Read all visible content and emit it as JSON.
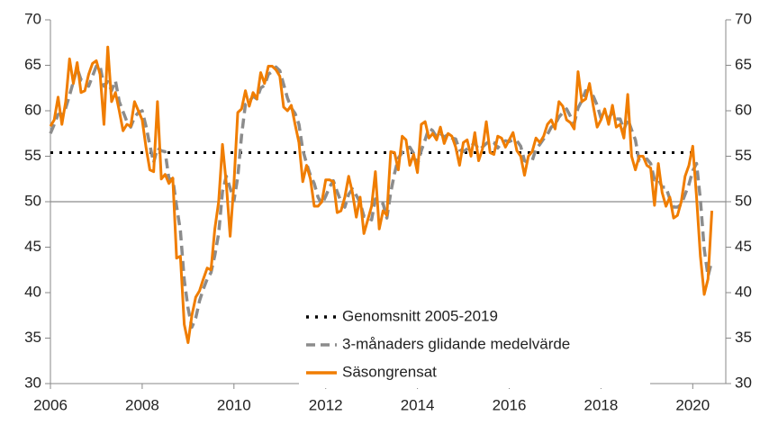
{
  "chart_data": {
    "type": "line",
    "x": [
      2006,
      2006.083,
      2006.167,
      2006.25,
      2006.333,
      2006.417,
      2006.5,
      2006.583,
      2006.667,
      2006.75,
      2006.833,
      2006.917,
      2007,
      2007.083,
      2007.167,
      2007.25,
      2007.333,
      2007.417,
      2007.5,
      2007.583,
      2007.667,
      2007.75,
      2007.833,
      2007.917,
      2008,
      2008.083,
      2008.167,
      2008.25,
      2008.333,
      2008.417,
      2008.5,
      2008.583,
      2008.667,
      2008.75,
      2008.833,
      2008.917,
      2009,
      2009.083,
      2009.167,
      2009.25,
      2009.333,
      2009.417,
      2009.5,
      2009.583,
      2009.667,
      2009.75,
      2009.833,
      2009.917,
      2010,
      2010.083,
      2010.167,
      2010.25,
      2010.333,
      2010.417,
      2010.5,
      2010.583,
      2010.667,
      2010.75,
      2010.833,
      2010.917,
      2011,
      2011.083,
      2011.167,
      2011.25,
      2011.333,
      2011.417,
      2011.5,
      2011.583,
      2011.667,
      2011.75,
      2011.833,
      2011.917,
      2012,
      2012.083,
      2012.167,
      2012.25,
      2012.333,
      2012.417,
      2012.5,
      2012.583,
      2012.667,
      2012.75,
      2012.833,
      2012.917,
      2013,
      2013.083,
      2013.167,
      2013.25,
      2013.333,
      2013.417,
      2013.5,
      2013.583,
      2013.667,
      2013.75,
      2013.833,
      2013.917,
      2014,
      2014.083,
      2014.167,
      2014.25,
      2014.333,
      2014.417,
      2014.5,
      2014.583,
      2014.667,
      2014.75,
      2014.833,
      2014.917,
      2015,
      2015.083,
      2015.167,
      2015.25,
      2015.333,
      2015.417,
      2015.5,
      2015.583,
      2015.667,
      2015.75,
      2015.833,
      2015.917,
      2016,
      2016.083,
      2016.167,
      2016.25,
      2016.333,
      2016.417,
      2016.5,
      2016.583,
      2016.667,
      2016.75,
      2016.833,
      2016.917,
      2017,
      2017.083,
      2017.167,
      2017.25,
      2017.333,
      2017.417,
      2017.5,
      2017.583,
      2017.667,
      2017.75,
      2017.833,
      2017.917,
      2018,
      2018.083,
      2018.167,
      2018.25,
      2018.333,
      2018.417,
      2018.5,
      2018.583,
      2018.667,
      2018.75,
      2018.833,
      2018.917,
      2019,
      2019.083,
      2019.167,
      2019.25,
      2019.333,
      2019.417,
      2019.5,
      2019.583,
      2019.667,
      2019.75,
      2019.833,
      2019.917,
      2020,
      2020.083,
      2020.167,
      2020.25,
      2020.333,
      2020.417
    ],
    "series": [
      {
        "name": "3-månaders glidande medelvärde",
        "color": "#8c8c8c",
        "style": "dashed",
        "values": [
          57.5,
          58.5,
          59.6,
          59.7,
          60.3,
          61.7,
          63.2,
          64.7,
          63.4,
          63.2,
          62.7,
          63.8,
          64.9,
          64.9,
          62.7,
          63.2,
          62.2,
          63.3,
          61,
          59.9,
          58.8,
          58.2,
          59.3,
          59.8,
          60,
          58.3,
          56.2,
          54.3,
          55.9,
          55.6,
          55.5,
          52.5,
          52.5,
          49.5,
          46.8,
          41.4,
          38.3,
          36.2,
          37.2,
          39.1,
          40.4,
          41.5,
          42.2,
          44.1,
          46.5,
          51.1,
          52.8,
          51.5,
          50.1,
          52.7,
          57.3,
          60.7,
          61,
          61.6,
          61.3,
          62.5,
          62.8,
          64,
          64.3,
          64.8,
          64.4,
          62.9,
          61.4,
          60.3,
          59.7,
          58.5,
          55.7,
          54.2,
          52.9,
          52,
          50.5,
          49.7,
          50.6,
          51.6,
          52.3,
          51.1,
          50,
          49.4,
          50.8,
          51.4,
          50.7,
          49.9,
          48.4,
          48.3,
          48,
          50.3,
          49.9,
          49.8,
          48.2,
          51,
          53.1,
          54.8,
          55.4,
          55.8,
          56,
          55.3,
          54.1,
          55.6,
          56.8,
          58.1,
          57.8,
          57.1,
          57.5,
          57.1,
          57.4,
          57,
          56.9,
          55.7,
          55.5,
          55.8,
          56.1,
          56.5,
          55.7,
          56,
          56.4,
          56.7,
          56.5,
          55.9,
          56.5,
          56.7,
          56.6,
          56.8,
          56.7,
          56.1,
          54.5,
          54.3,
          54.5,
          55.8,
          56.3,
          56.9,
          57.4,
          58.2,
          58.5,
          59.3,
          59.8,
          60.2,
          59.4,
          58.6,
          60.3,
          61.1,
          62.2,
          61.8,
          61.6,
          60.6,
          59.2,
          59.1,
          59.2,
          59.8,
          59.1,
          59.1,
          57.9,
          59.1,
          57.9,
          56.8,
          54.5,
          54.5,
          54.7,
          54.2,
          52.4,
          52.5,
          51.6,
          51.6,
          50.3,
          49.4,
          49.4,
          49.7,
          50.8,
          51.9,
          53.4,
          54.2,
          50.2,
          44.8,
          41.8,
          43.5
        ]
      },
      {
        "name": "Säsongrensat",
        "color": "#f07d00",
        "style": "solid",
        "values": [
          58.3,
          59,
          61.5,
          58.5,
          61,
          65.7,
          63,
          65.3,
          62,
          62.2,
          64,
          65.2,
          65.5,
          64,
          58.5,
          67,
          61,
          62,
          60,
          57.8,
          58.5,
          58.3,
          61,
          60,
          59,
          56,
          53.5,
          53.3,
          61,
          52.5,
          53,
          52,
          52.6,
          43.8,
          44,
          36.5,
          34.5,
          37.5,
          39.5,
          40.2,
          41.5,
          42.7,
          42.5,
          47,
          50,
          56.3,
          52,
          46.2,
          52,
          59.8,
          60.2,
          62.2,
          60.5,
          62,
          61.3,
          64.2,
          63,
          64.9,
          64.9,
          64.5,
          63.8,
          60.4,
          60,
          60.6,
          58.5,
          56.5,
          52.2,
          54,
          52.5,
          49.5,
          49.5,
          50,
          52.4,
          52.4,
          52.2,
          48.8,
          49,
          50.5,
          52.8,
          51,
          48.3,
          50.5,
          46.5,
          48,
          49.5,
          53.3,
          47,
          49,
          48.5,
          55.5,
          55.4,
          53.5,
          57.2,
          56.8,
          54,
          55.2,
          53.2,
          58.5,
          58.8,
          57,
          57.5,
          56.8,
          58.2,
          56.4,
          57.5,
          57.2,
          56,
          54,
          56.5,
          56.8,
          55,
          57.6,
          54.5,
          55.8,
          58.8,
          55.4,
          55.2,
          57.2,
          57,
          56,
          56.8,
          57.6,
          55.6,
          55,
          52.9,
          55,
          55.5,
          57,
          56.5,
          57.2,
          58.5,
          59,
          58,
          61,
          60.5,
          59,
          58.7,
          58,
          64.3,
          61,
          61.3,
          63,
          60.5,
          58.2,
          59,
          60.2,
          58.5,
          60.6,
          58.2,
          58.5,
          57,
          61.8,
          55,
          53.5,
          55,
          55,
          54,
          53.7,
          49.6,
          54.2,
          51,
          49.5,
          50.5,
          48.2,
          48.5,
          50,
          52.8,
          54,
          56.1,
          50.5,
          44,
          39.8,
          41.5,
          49
        ]
      }
    ],
    "reference_lines": [
      {
        "name": "Genomsnitt 2005-2019",
        "value": 55.4,
        "color": "#000000",
        "style": "dotted"
      }
    ],
    "baseline": 50,
    "xlim": [
      2006,
      2020.72
    ],
    "xticks": [
      2006,
      2008,
      2010,
      2012,
      2014,
      2016,
      2018,
      2020
    ],
    "ylim": [
      30,
      70
    ],
    "yticks": [
      30,
      35,
      40,
      45,
      50,
      55,
      60,
      65,
      70
    ],
    "y2lim": [
      30,
      70
    ],
    "y2ticks": [
      30,
      35,
      40,
      45,
      50,
      55,
      60,
      65,
      70
    ],
    "grid": false,
    "legend": "bottom-center"
  }
}
